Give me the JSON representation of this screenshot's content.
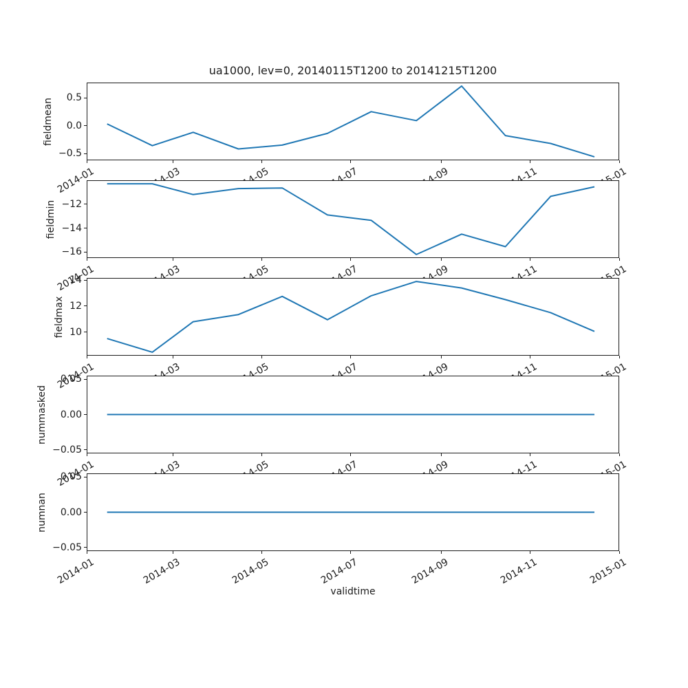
{
  "figure": {
    "title": "ua1000, lev=0, 20140115T1200 to 20141215T1200",
    "xlabel": "validtime"
  },
  "x_axis": {
    "xlim": [
      "2014-01-01",
      "2015-01-01"
    ],
    "tick_rotation_deg": 30,
    "ticks": [
      {
        "date": "2014-01-01",
        "label": "2014-01"
      },
      {
        "date": "2014-03-01",
        "label": "2014-03"
      },
      {
        "date": "2014-05-01",
        "label": "2014-05"
      },
      {
        "date": "2014-07-01",
        "label": "2014-07"
      },
      {
        "date": "2014-09-01",
        "label": "2014-09"
      },
      {
        "date": "2014-11-01",
        "label": "2014-11"
      },
      {
        "date": "2015-01-01",
        "label": "2015-01"
      }
    ]
  },
  "chart_data": [
    {
      "type": "line",
      "ylabel": "fieldmean",
      "color": "#1f77b4",
      "x_dates": [
        "2014-01-15",
        "2014-02-15",
        "2014-03-15",
        "2014-04-15",
        "2014-05-15",
        "2014-06-15",
        "2014-07-15",
        "2014-08-15",
        "2014-09-15",
        "2014-10-15",
        "2014-11-15",
        "2014-12-15"
      ],
      "values": [
        0.03,
        -0.36,
        -0.12,
        -0.42,
        -0.35,
        -0.14,
        0.25,
        0.09,
        0.71,
        -0.18,
        -0.32,
        -0.56
      ],
      "ylim": [
        -0.6235,
        0.7735
      ],
      "yticks": [
        {
          "value": 0.5,
          "label": "0.5"
        },
        {
          "value": 0.0,
          "label": "0.0"
        },
        {
          "value": -0.5,
          "label": "−0.5"
        }
      ]
    },
    {
      "type": "line",
      "ylabel": "fieldmin",
      "color": "#1f77b4",
      "x_dates": [
        "2014-01-15",
        "2014-02-15",
        "2014-03-15",
        "2014-04-15",
        "2014-05-15",
        "2014-06-15",
        "2014-07-15",
        "2014-08-15",
        "2014-09-15",
        "2014-10-15",
        "2014-11-15",
        "2014-12-15"
      ],
      "values": [
        -10.3,
        -10.3,
        -11.2,
        -10.7,
        -10.65,
        -12.9,
        -13.35,
        -16.2,
        -14.5,
        -15.55,
        -11.35,
        -10.55
      ],
      "ylim": [
        -16.495,
        -10.005
      ],
      "yticks": [
        {
          "value": -12,
          "label": "−12"
        },
        {
          "value": -14,
          "label": "−14"
        },
        {
          "value": -16,
          "label": "−16"
        }
      ]
    },
    {
      "type": "line",
      "ylabel": "fieldmax",
      "color": "#1f77b4",
      "x_dates": [
        "2014-01-15",
        "2014-02-15",
        "2014-03-15",
        "2014-04-15",
        "2014-05-15",
        "2014-06-15",
        "2014-07-15",
        "2014-08-15",
        "2014-09-15",
        "2014-10-15",
        "2014-11-15",
        "2014-12-15"
      ],
      "values": [
        9.5,
        8.45,
        10.8,
        11.35,
        12.75,
        10.95,
        12.8,
        13.9,
        13.4,
        12.5,
        11.5,
        10.05
      ],
      "ylim": [
        8.1775,
        14.1725
      ],
      "yticks": [
        {
          "value": 14,
          "label": "14"
        },
        {
          "value": 12,
          "label": "12"
        },
        {
          "value": 10,
          "label": "10"
        }
      ]
    },
    {
      "type": "line",
      "ylabel": "nummasked",
      "color": "#1f77b4",
      "x_dates": [
        "2014-01-15",
        "2014-02-15",
        "2014-03-15",
        "2014-04-15",
        "2014-05-15",
        "2014-06-15",
        "2014-07-15",
        "2014-08-15",
        "2014-09-15",
        "2014-10-15",
        "2014-11-15",
        "2014-12-15"
      ],
      "values": [
        0,
        0,
        0,
        0,
        0,
        0,
        0,
        0,
        0,
        0,
        0,
        0
      ],
      "ylim": [
        -0.055,
        0.055
      ],
      "yticks": [
        {
          "value": 0.05,
          "label": "0.05"
        },
        {
          "value": 0.0,
          "label": "0.00"
        },
        {
          "value": -0.05,
          "label": "−0.05"
        }
      ]
    },
    {
      "type": "line",
      "ylabel": "numnan",
      "color": "#1f77b4",
      "x_dates": [
        "2014-01-15",
        "2014-02-15",
        "2014-03-15",
        "2014-04-15",
        "2014-05-15",
        "2014-06-15",
        "2014-07-15",
        "2014-08-15",
        "2014-09-15",
        "2014-10-15",
        "2014-11-15",
        "2014-12-15"
      ],
      "values": [
        0,
        0,
        0,
        0,
        0,
        0,
        0,
        0,
        0,
        0,
        0,
        0
      ],
      "ylim": [
        -0.055,
        0.055
      ],
      "yticks": [
        {
          "value": 0.05,
          "label": "0.05"
        },
        {
          "value": 0.0,
          "label": "0.00"
        },
        {
          "value": -0.05,
          "label": "−0.05"
        }
      ]
    }
  ]
}
